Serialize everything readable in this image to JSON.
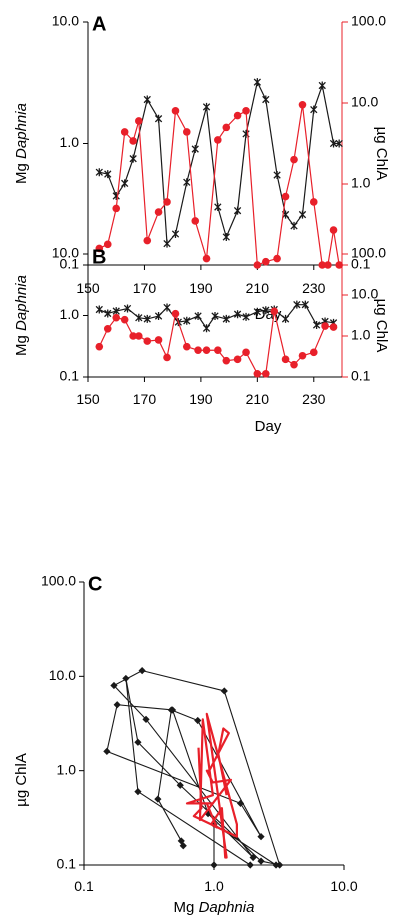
{
  "colors": {
    "black": "#1a1a1a",
    "red": "#e8202a"
  },
  "chart_data": [
    {
      "panel": "A",
      "type": "line",
      "xlabel": "Day",
      "ylabel_left": {
        "prefix": "Mg ",
        "italic": "Daphnia"
      },
      "ylabel_right": "µg ChlA",
      "xlim": [
        150,
        240
      ],
      "xticks": [
        "150",
        "170",
        "190",
        "210",
        "230"
      ],
      "left_axis": {
        "scale": "log",
        "range": [
          0.1,
          10
        ],
        "ticks": [
          "0.1",
          "1.0",
          "10.0"
        ]
      },
      "right_axis": {
        "scale": "log",
        "range": [
          0.1,
          100
        ],
        "ticks": [
          "0.1",
          "1.0",
          "10.0",
          "100.0"
        ]
      },
      "series": [
        {
          "axis": "left",
          "color": "black",
          "marker": "star",
          "x": [
            154,
            157,
            160,
            163,
            166,
            171,
            175,
            178,
            181,
            185,
            188,
            192,
            196,
            199,
            203,
            206,
            210,
            213,
            217,
            220,
            223,
            226,
            230,
            233,
            237,
            239
          ],
          "y": [
            0.58,
            0.56,
            0.37,
            0.47,
            0.75,
            2.3,
            1.6,
            0.15,
            0.18,
            0.48,
            0.9,
            2.0,
            0.3,
            0.17,
            0.28,
            1.2,
            3.2,
            2.3,
            0.55,
            0.26,
            0.21,
            0.26,
            1.9,
            3.0,
            1.0,
            1.0
          ]
        },
        {
          "axis": "right",
          "color": "red",
          "marker": "circle",
          "x": [
            154,
            157,
            160,
            163,
            166,
            168,
            171,
            175,
            178,
            181,
            185,
            188,
            192,
            196,
            199,
            203,
            206,
            210,
            213,
            217,
            220,
            223,
            226,
            230,
            233,
            235,
            237,
            239
          ],
          "y": [
            0.16,
            0.18,
            0.5,
            4.4,
            3.4,
            6.0,
            0.2,
            0.45,
            0.6,
            8.0,
            4.4,
            0.35,
            0.12,
            3.5,
            5.0,
            7.0,
            8.0,
            0.1,
            0.11,
            0.12,
            0.7,
            2.0,
            9.5,
            0.6,
            0.1,
            0.1,
            0.27,
            0.1
          ]
        }
      ]
    },
    {
      "panel": "B",
      "type": "line",
      "xlabel": "Day",
      "ylabel_left": {
        "prefix": "Mg ",
        "italic": "Daphnia"
      },
      "ylabel_right": "µg ChlA",
      "xlim": [
        150,
        240
      ],
      "xticks": [
        "150",
        "170",
        "190",
        "210",
        "230"
      ],
      "left_axis": {
        "scale": "log",
        "range": [
          0.1,
          10
        ],
        "ticks": [
          "0.1",
          "1.0",
          "10.0"
        ]
      },
      "right_axis": {
        "scale": "log",
        "range": [
          0.1,
          100
        ],
        "ticks": [
          "0.1",
          "1.0",
          "10.0",
          "100.0"
        ]
      },
      "series": [
        {
          "axis": "left",
          "color": "black",
          "marker": "star",
          "x": [
            154,
            157,
            160,
            164,
            168,
            171,
            175,
            178,
            182,
            185,
            189,
            192,
            195,
            199,
            203,
            206,
            210,
            213,
            216,
            220,
            224,
            227,
            231,
            234,
            237
          ],
          "y": [
            1.25,
            1.08,
            1.18,
            1.3,
            0.92,
            0.88,
            0.98,
            1.35,
            0.78,
            0.82,
            0.98,
            0.62,
            0.98,
            0.88,
            1.05,
            0.95,
            1.15,
            1.22,
            1.25,
            0.88,
            1.5,
            1.5,
            0.7,
            0.8,
            0.76
          ]
        },
        {
          "axis": "right",
          "color": "red",
          "marker": "circle",
          "x": [
            154,
            157,
            160,
            163,
            166,
            168,
            171,
            175,
            178,
            181,
            185,
            189,
            192,
            196,
            199,
            203,
            206,
            210,
            213,
            216,
            220,
            223,
            226,
            230,
            234,
            237
          ],
          "y": [
            0.55,
            1.5,
            2.8,
            2.5,
            1.0,
            1.0,
            0.75,
            0.8,
            0.3,
            3.5,
            0.55,
            0.45,
            0.45,
            0.45,
            0.25,
            0.27,
            0.4,
            0.12,
            0.12,
            4.0,
            0.27,
            0.2,
            0.33,
            0.4,
            1.75,
            1.65
          ]
        }
      ]
    },
    {
      "panel": "C",
      "type": "line",
      "xlabel": {
        "prefix": "Mg ",
        "italic": "Daphnia"
      },
      "ylabel": "µg ChlA",
      "x_axis": {
        "scale": "log",
        "range": [
          0.1,
          10
        ],
        "ticks": [
          "0.1",
          "1.0",
          "10.0"
        ]
      },
      "y_axis": {
        "scale": "log",
        "range": [
          0.1,
          100
        ],
        "ticks": [
          "0.1",
          "1.0",
          "10.0",
          "100.0"
        ]
      },
      "series": [
        {
          "color": "black",
          "marker": "diamond",
          "x": [
            0.58,
            0.56,
            0.37,
            0.47,
            0.75,
            2.3,
            1.6,
            0.15,
            0.18,
            0.48,
            0.9,
            2.0,
            0.3,
            0.17,
            0.28,
            1.2,
            3.2,
            2.3,
            0.55,
            0.26,
            0.21,
            0.26,
            1.9,
            3.0,
            1.0,
            1.0
          ],
          "y": [
            0.16,
            0.18,
            0.5,
            4.4,
            3.4,
            0.2,
            0.45,
            1.6,
            5.0,
            4.4,
            0.35,
            0.12,
            3.5,
            8.0,
            11.5,
            7.0,
            0.1,
            0.11,
            0.7,
            2.0,
            9.5,
            0.6,
            0.1,
            0.1,
            0.27,
            0.1
          ]
        },
        {
          "color": "red",
          "marker": "none",
          "x": [
            1.25,
            1.08,
            1.18,
            1.3,
            0.92,
            0.88,
            0.98,
            1.35,
            0.78,
            0.82,
            0.98,
            0.62,
            0.98,
            0.88,
            1.05,
            0.95,
            1.15,
            1.22,
            1.25,
            0.88,
            1.5,
            1.5,
            0.7,
            0.8,
            0.76
          ],
          "y": [
            0.55,
            1.5,
            2.8,
            2.5,
            1.0,
            1.0,
            0.75,
            0.8,
            0.3,
            3.5,
            0.55,
            0.45,
            0.45,
            0.45,
            0.25,
            0.27,
            0.4,
            0.12,
            0.12,
            4.0,
            0.27,
            0.2,
            0.33,
            0.4,
            1.75
          ]
        }
      ]
    }
  ]
}
